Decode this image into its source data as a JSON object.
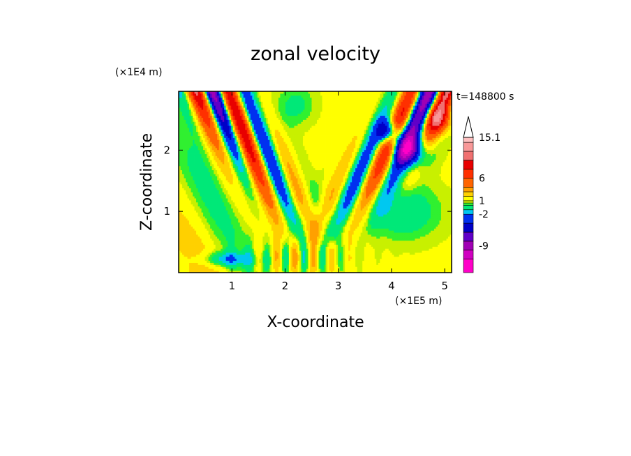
{
  "chart_data": {
    "type": "heatmap",
    "title": "zonal velocity",
    "xlabel": "X-coordinate",
    "ylabel": "Z-coordinate",
    "x_scale_label": "(×1E5 m)",
    "y_scale_label": "(×1E4 m)",
    "time_label": "t=148800 s",
    "xlim": [
      0,
      5.13
    ],
    "ylim": [
      0,
      2.96
    ],
    "x_ticks": [
      "1",
      "2",
      "3",
      "4",
      "5"
    ],
    "x_tick_values": [
      1,
      2,
      3,
      4,
      5
    ],
    "y_ticks": [
      "1",
      "2"
    ],
    "y_tick_values": [
      1,
      2
    ],
    "colorbar": {
      "tick_labels": [
        "15.1",
        "6",
        "1",
        "-2",
        "-9"
      ],
      "tick_values": [
        15.1,
        6,
        1,
        -2,
        -9
      ],
      "levels": [
        {
          "min": -15,
          "max": -12,
          "color": "#ff00c8"
        },
        {
          "min": -12,
          "max": -10,
          "color": "#d000c0"
        },
        {
          "min": -10,
          "max": -8,
          "color": "#a000b4"
        },
        {
          "min": -8,
          "max": -6,
          "color": "#6000c8"
        },
        {
          "min": -6,
          "max": -4,
          "color": "#0000c8"
        },
        {
          "min": -4,
          "max": -2,
          "color": "#0030f0"
        },
        {
          "min": -2,
          "max": -1,
          "color": "#00c8f0"
        },
        {
          "min": -1,
          "max": 0,
          "color": "#00e878"
        },
        {
          "min": 0,
          "max": 0.5,
          "color": "#30f030"
        },
        {
          "min": 0.5,
          "max": 1,
          "color": "#c8f000"
        },
        {
          "min": 1,
          "max": 2,
          "color": "#ffff00"
        },
        {
          "min": 2,
          "max": 3,
          "color": "#ffd000"
        },
        {
          "min": 3,
          "max": 4,
          "color": "#ffa000"
        },
        {
          "min": 4,
          "max": 6,
          "color": "#ff6400"
        },
        {
          "min": 6,
          "max": 8,
          "color": "#ff3000"
        },
        {
          "min": 8,
          "max": 10,
          "color": "#e80000"
        },
        {
          "min": 10,
          "max": 12,
          "color": "#f07070"
        },
        {
          "min": 12,
          "max": 14,
          "color": "#f89898"
        },
        {
          "min": 14,
          "max": 15.1,
          "color": "#ffc0c0"
        }
      ],
      "overflow_color": "#ffffff"
    },
    "field_description_values": {
      "nx": 52,
      "nz": 30
    }
  }
}
